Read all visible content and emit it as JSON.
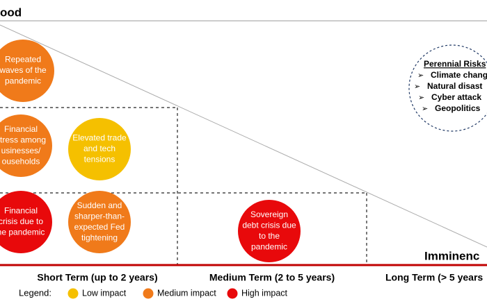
{
  "header": {
    "title": "ood"
  },
  "axis": {
    "x_title": "Imminenc",
    "periods": [
      "Short Term (up to 2 years)",
      "Medium Term (2 to 5 years)",
      "Long Term (> 5 years"
    ]
  },
  "nodes": [
    {
      "lines": [
        "Repeated",
        "waves of the",
        "pandemic"
      ],
      "color": "#f07a1a"
    },
    {
      "lines": [
        "Financial",
        "stress among",
        "usinesses/",
        "ouseholds"
      ],
      "color": "#f07a1a"
    },
    {
      "lines": [
        "Elevated trade",
        "and tech",
        "tensions"
      ],
      "color": "#f5c000"
    },
    {
      "lines": [
        "Financial",
        "crisis due to",
        "he pandemic"
      ],
      "color": "#e8090b"
    },
    {
      "lines": [
        "Sudden and",
        "sharper-than-",
        "expected Fed",
        "tightening"
      ],
      "color": "#f07a1a"
    },
    {
      "lines": [
        "Sovereign",
        "debt crisis due",
        "to the",
        "pandemic"
      ],
      "color": "#e8090b"
    }
  ],
  "perennial": {
    "title": "Perennial Risks",
    "items": [
      "Climate chang",
      "Natural disast",
      "Cyber attack",
      "Geopolitics"
    ]
  },
  "legend": {
    "title": "Legend:",
    "items": [
      {
        "label": "Low impact",
        "color": "#f5c000"
      },
      {
        "label": "Medium impact",
        "color": "#f07a1a"
      },
      {
        "label": "High impact",
        "color": "#e8090b"
      }
    ]
  }
}
